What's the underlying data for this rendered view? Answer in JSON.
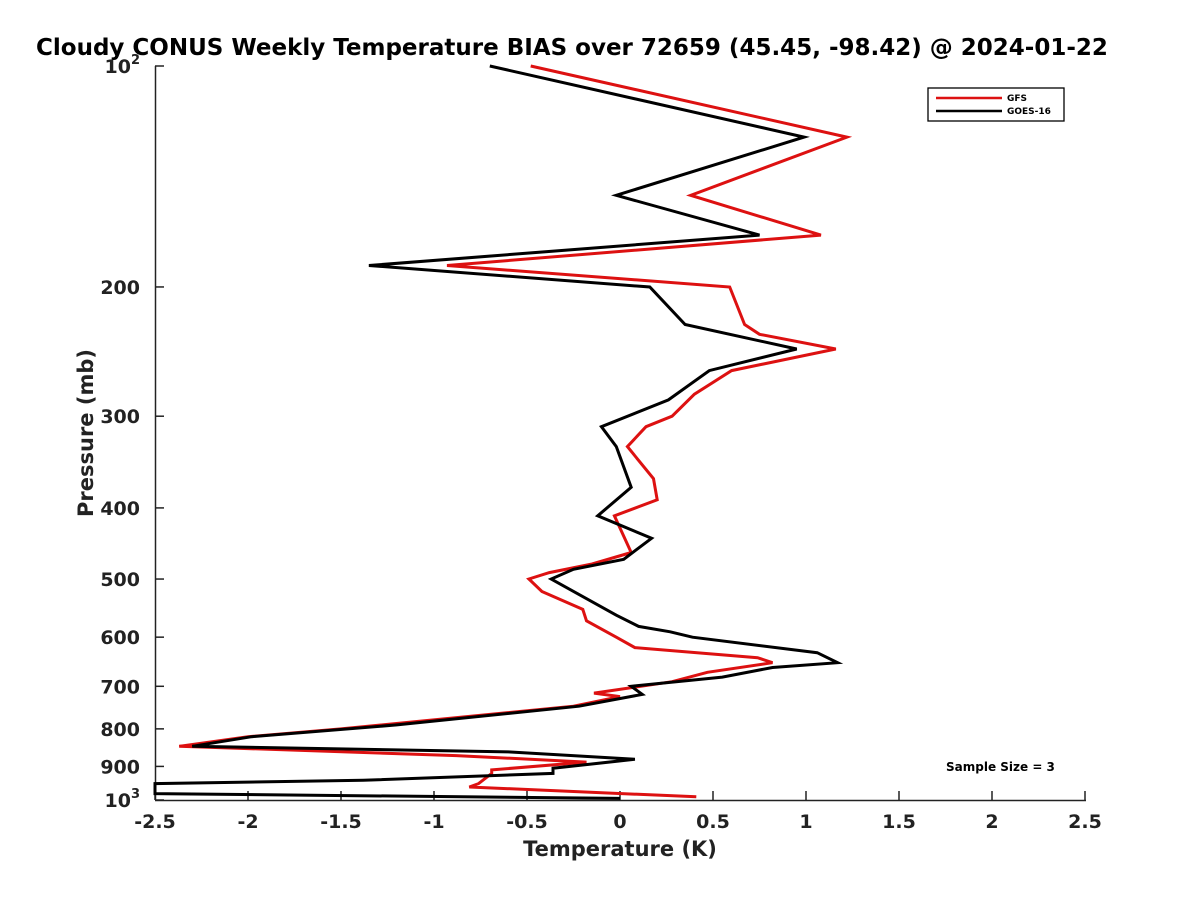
{
  "chart_data": {
    "type": "line",
    "title": "Cloudy CONUS Weekly Temperature BIAS over 72659 (45.45, -98.42) @ 2024-01-22",
    "xlabel": "Temperature (K)",
    "ylabel": "Pressure (mb)",
    "xlim": [
      -2.5,
      2.5
    ],
    "ylim": [
      1000,
      100
    ],
    "yscale": "log",
    "x_ticks": [
      "-2.5",
      "-2",
      "-1.5",
      "-1",
      "-0.5",
      "0",
      "0.5",
      "1",
      "1.5",
      "2",
      "2.5"
    ],
    "y_ticks": [
      {
        "value": 100,
        "base": "10",
        "exp": "2"
      },
      {
        "value": 200,
        "label": "200"
      },
      {
        "value": 300,
        "label": "300"
      },
      {
        "value": 400,
        "label": "400"
      },
      {
        "value": 500,
        "label": "500"
      },
      {
        "value": 600,
        "label": "600"
      },
      {
        "value": 700,
        "label": "700"
      },
      {
        "value": 800,
        "label": "800"
      },
      {
        "value": 900,
        "label": "900"
      },
      {
        "value": 1000,
        "base": "10",
        "exp": "3"
      }
    ],
    "grid": false,
    "legend_position": "top-right",
    "annotation": "Sample Size = 3",
    "series": [
      {
        "name": "GFS",
        "color": "#dd1111",
        "points": [
          [
            -0.48,
            100
          ],
          [
            1.22,
            125
          ],
          [
            0.38,
            150
          ],
          [
            1.08,
            170
          ],
          [
            -0.93,
            187
          ],
          [
            0.59,
            200
          ],
          [
            0.67,
            225
          ],
          [
            0.75,
            232
          ],
          [
            1.16,
            243
          ],
          [
            0.6,
            260
          ],
          [
            0.4,
            280
          ],
          [
            0.28,
            300
          ],
          [
            0.14,
            310
          ],
          [
            0.04,
            330
          ],
          [
            0.18,
            365
          ],
          [
            0.2,
            390
          ],
          [
            -0.03,
            410
          ],
          [
            0.06,
            460
          ],
          [
            -0.15,
            477
          ],
          [
            -0.38,
            490
          ],
          [
            -0.49,
            500
          ],
          [
            -0.42,
            520
          ],
          [
            -0.2,
            550
          ],
          [
            -0.18,
            570
          ],
          [
            -0.02,
            600
          ],
          [
            0.08,
            620
          ],
          [
            0.74,
            640
          ],
          [
            0.82,
            650
          ],
          [
            0.47,
            670
          ],
          [
            0.28,
            690
          ],
          [
            -0.14,
            715
          ],
          [
            0.0,
            723
          ],
          [
            -0.25,
            745
          ],
          [
            -1.5,
            800
          ],
          [
            -2.0,
            820
          ],
          [
            -2.37,
            845
          ],
          [
            -0.88,
            870
          ],
          [
            -0.18,
            888
          ],
          [
            -0.69,
            910
          ],
          [
            -0.69,
            920
          ],
          [
            -0.76,
            950
          ],
          [
            -0.81,
            960
          ],
          [
            0.41,
            990
          ]
        ]
      },
      {
        "name": "GOES-16",
        "color": "#000000",
        "points": [
          [
            -0.7,
            100
          ],
          [
            0.99,
            125
          ],
          [
            -0.02,
            150
          ],
          [
            0.75,
            170
          ],
          [
            -1.35,
            187
          ],
          [
            0.16,
            200
          ],
          [
            0.35,
            225
          ],
          [
            0.95,
            243
          ],
          [
            0.48,
            260
          ],
          [
            0.26,
            285
          ],
          [
            -0.1,
            310
          ],
          [
            -0.02,
            330
          ],
          [
            0.06,
            375
          ],
          [
            -0.12,
            410
          ],
          [
            0.17,
            440
          ],
          [
            0.02,
            470
          ],
          [
            -0.25,
            485
          ],
          [
            -0.37,
            500
          ],
          [
            -0.02,
            560
          ],
          [
            0.1,
            580
          ],
          [
            0.27,
            590
          ],
          [
            0.39,
            600
          ],
          [
            1.06,
            630
          ],
          [
            1.17,
            650
          ],
          [
            0.82,
            660
          ],
          [
            0.55,
            680
          ],
          [
            0.06,
            700
          ],
          [
            0.12,
            718
          ],
          [
            -0.22,
            745
          ],
          [
            -1.2,
            790
          ],
          [
            -1.98,
            820
          ],
          [
            -2.3,
            845
          ],
          [
            -0.6,
            860
          ],
          [
            0.08,
            880
          ],
          [
            -0.36,
            905
          ],
          [
            -0.36,
            920
          ],
          [
            -1.38,
            940
          ],
          [
            -2.5,
            950
          ],
          [
            -2.5,
            980
          ],
          [
            0.0,
            995
          ]
        ]
      }
    ]
  }
}
